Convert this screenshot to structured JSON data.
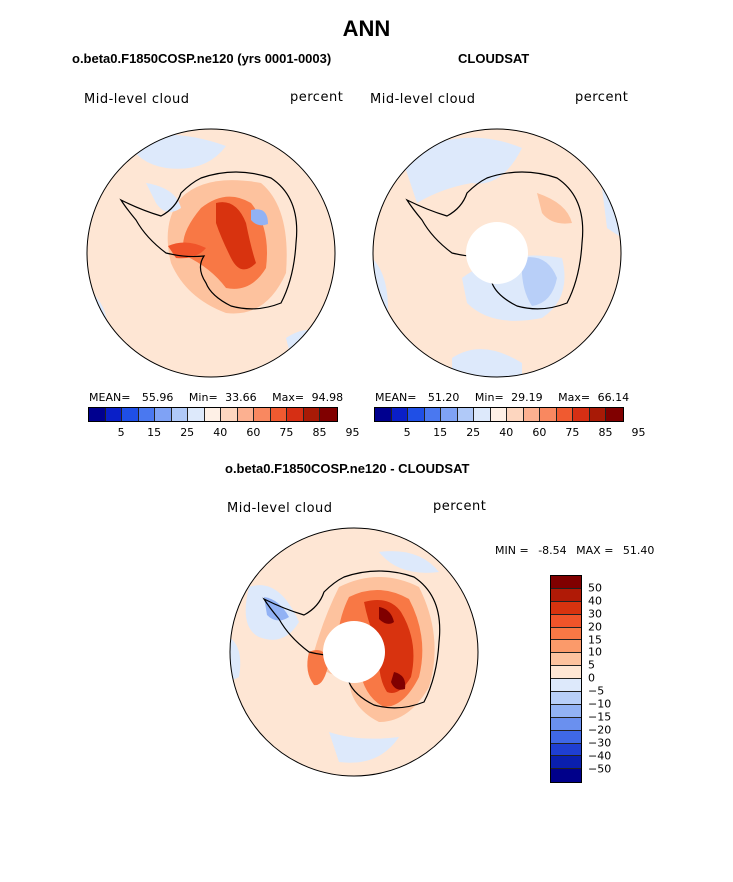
{
  "figure_title": "ANN",
  "chart_data": [
    {
      "type": "heatmap",
      "title": "o.beta0.F1850COSP.ne120 (yrs 0001-0003)",
      "variable_label": "Mid-level cloud",
      "units_label": "percent",
      "projection": "south polar stereographic",
      "stats": {
        "mean_label": "MEAN=",
        "mean": "55.96",
        "min_label": "Min=",
        "min": "33.66",
        "max_label": "Max=",
        "max": "94.98"
      },
      "colorbar_levels": [
        "5",
        "15",
        "25",
        "40",
        "60",
        "75",
        "85",
        "95"
      ],
      "colorbar_colors": [
        "#00008f",
        "#0a1fc8",
        "#1f4fe6",
        "#4a78f0",
        "#7fa2f5",
        "#b0c9f8",
        "#dde9fb",
        "#fef0e6",
        "#fdd6bf",
        "#fcb090",
        "#f98860",
        "#f05a30",
        "#d62f14",
        "#a81a06",
        "#800000"
      ]
    },
    {
      "type": "heatmap",
      "title": "CLOUDSAT",
      "variable_label": "Mid-level cloud",
      "units_label": "percent",
      "projection": "south polar stereographic",
      "stats": {
        "mean_label": "MEAN=",
        "mean": "51.20",
        "min_label": "Min=",
        "min": "29.19",
        "max_label": "Max=",
        "max": "66.14"
      },
      "colorbar_levels": [
        "5",
        "15",
        "25",
        "40",
        "60",
        "75",
        "85",
        "95"
      ],
      "colorbar_colors": [
        "#00008f",
        "#0a1fc8",
        "#1f4fe6",
        "#4a78f0",
        "#7fa2f5",
        "#b0c9f8",
        "#dde9fb",
        "#fef0e6",
        "#fdd6bf",
        "#fcb090",
        "#f98860",
        "#f05a30",
        "#d62f14",
        "#a81a06",
        "#800000"
      ]
    },
    {
      "type": "heatmap",
      "title": "o.beta0.F1850COSP.ne120 - CLOUDSAT",
      "variable_label": "Mid-level cloud",
      "units_label": "percent",
      "projection": "south polar stereographic",
      "stats": {
        "min_label": "MIN =",
        "min": "-8.54",
        "max_label": "MAX =",
        "max": "51.40"
      },
      "colorbar_levels": [
        "50",
        "40",
        "30",
        "20",
        "15",
        "10",
        "5",
        "0",
        "−5",
        "−10",
        "−15",
        "−20",
        "−30",
        "−40",
        "−50"
      ],
      "colorbar_colors": [
        "#800000",
        "#b01a06",
        "#d8330f",
        "#f0542a",
        "#f87845",
        "#fb9a6a",
        "#fdc29e",
        "#fee6d4",
        "#dde9fb",
        "#b8cff8",
        "#92b2f4",
        "#6a90ef",
        "#3f68e6",
        "#1f3fd2",
        "#0a1fae",
        "#00008a"
      ]
    }
  ]
}
